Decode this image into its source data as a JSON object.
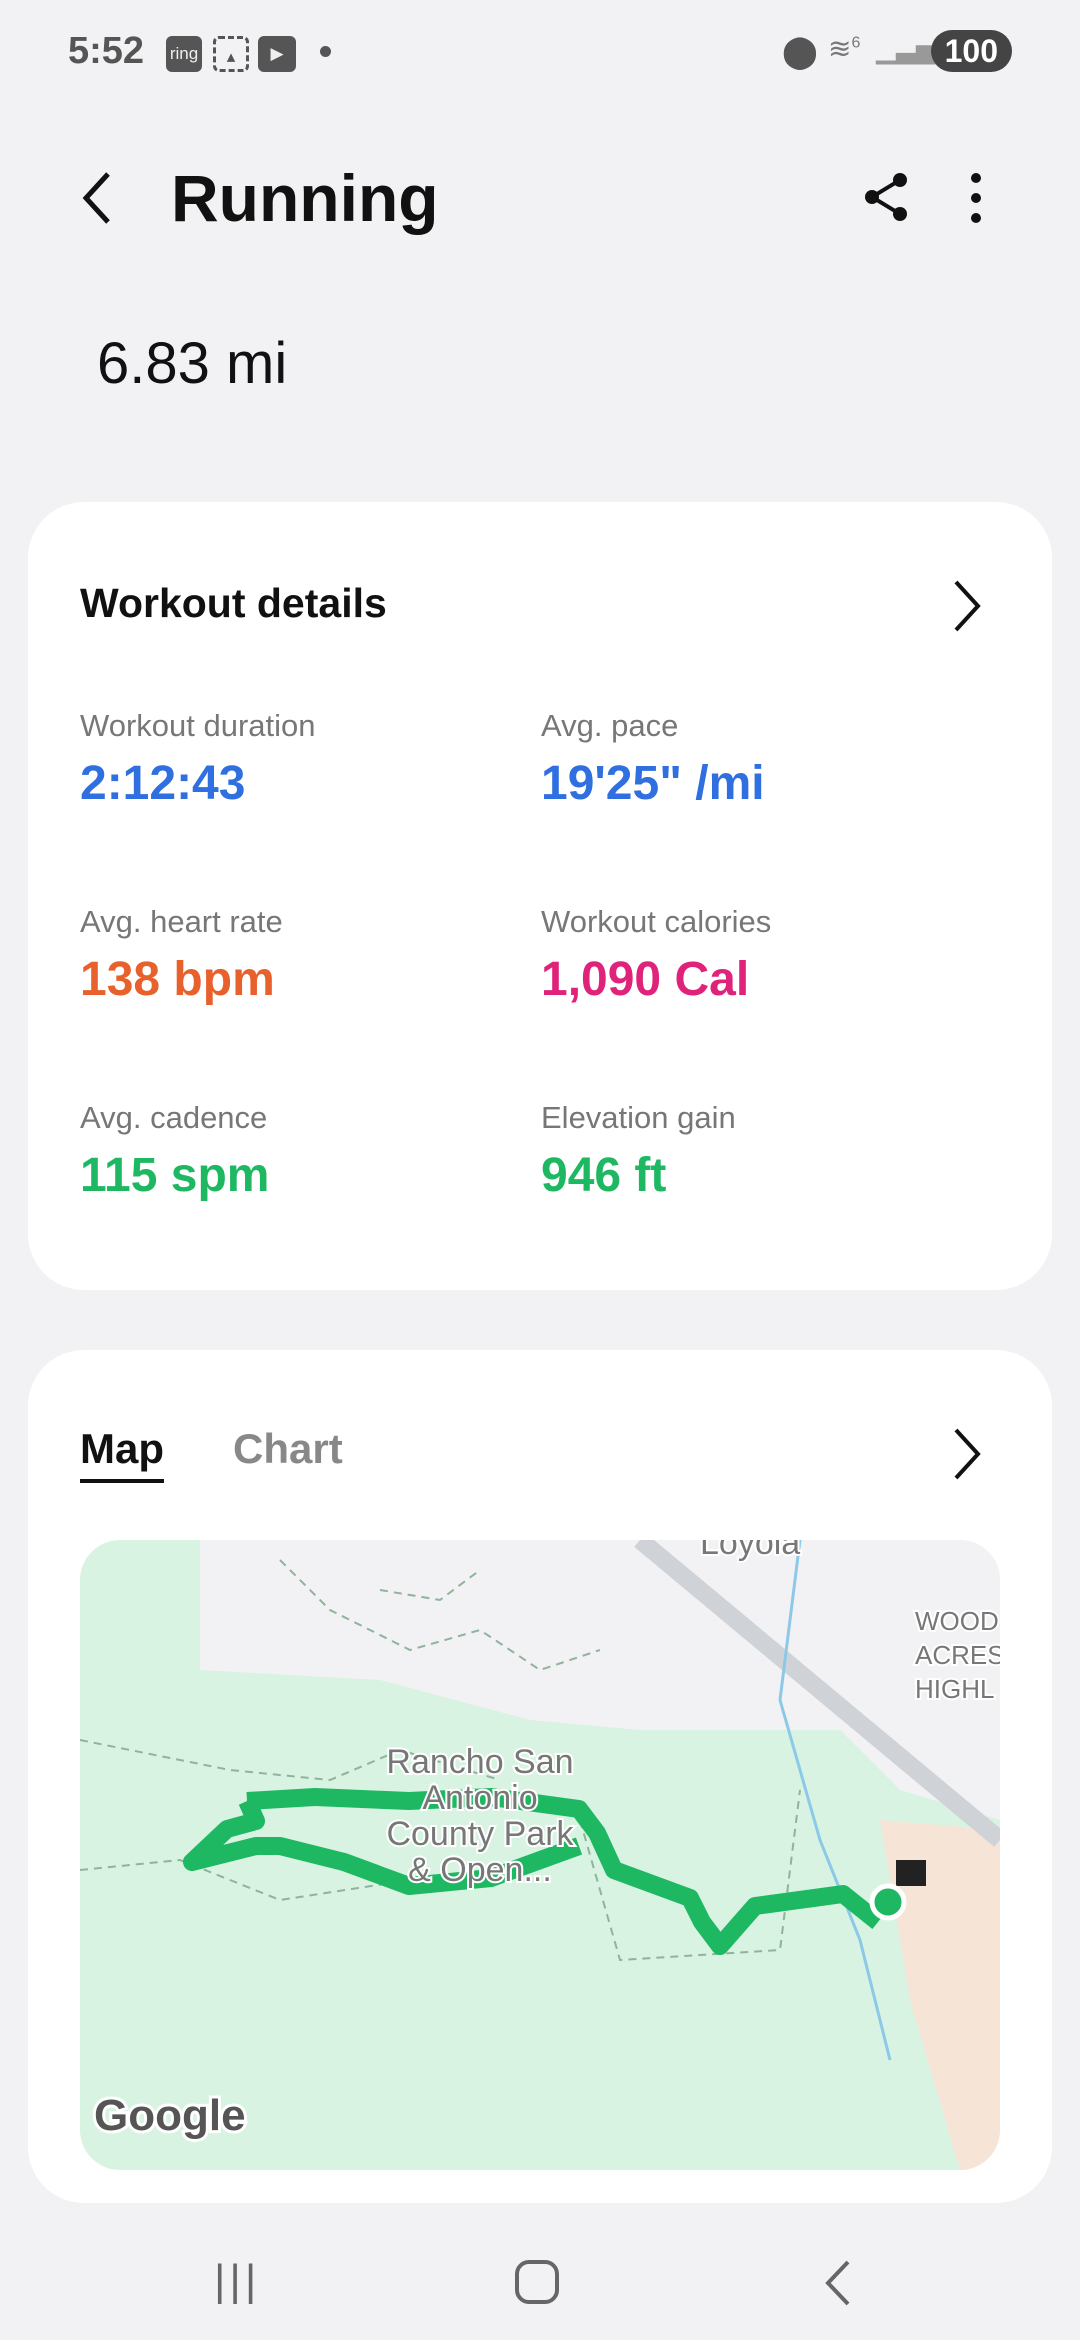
{
  "status_bar": {
    "time": "5:52",
    "ring": "ring",
    "battery": "100",
    "wifi_gen": "6"
  },
  "header": {
    "title": "Running"
  },
  "summary": {
    "distance": "6.83 mi"
  },
  "details": {
    "title": "Workout details",
    "items": [
      {
        "label": "Workout duration",
        "value": "2:12:43",
        "color": "#2f6fe0"
      },
      {
        "label": "Avg. pace",
        "value": "19'25\" /mi",
        "color": "#2f6fe0"
      },
      {
        "label": "Avg. heart rate",
        "value": "138 bpm",
        "color": "#e8612c"
      },
      {
        "label": "Workout calories",
        "value": "1,090 Cal",
        "color": "#e0237a"
      },
      {
        "label": "Avg. cadence",
        "value": "115 spm",
        "color": "#1db861"
      },
      {
        "label": "Elevation gain",
        "value": "946 ft",
        "color": "#1db861"
      }
    ]
  },
  "map_card": {
    "tabs": [
      {
        "label": "Map",
        "active": true
      },
      {
        "label": "Chart",
        "active": false
      }
    ],
    "map": {
      "park_label": [
        "Rancho San",
        "Antonio",
        "County Park",
        "& Open..."
      ],
      "place_loyola": "Loyola",
      "place_wood": [
        "WOOD",
        "ACRES",
        "HIGHL"
      ],
      "attribution": "Google",
      "route_color": "#1db861"
    }
  }
}
